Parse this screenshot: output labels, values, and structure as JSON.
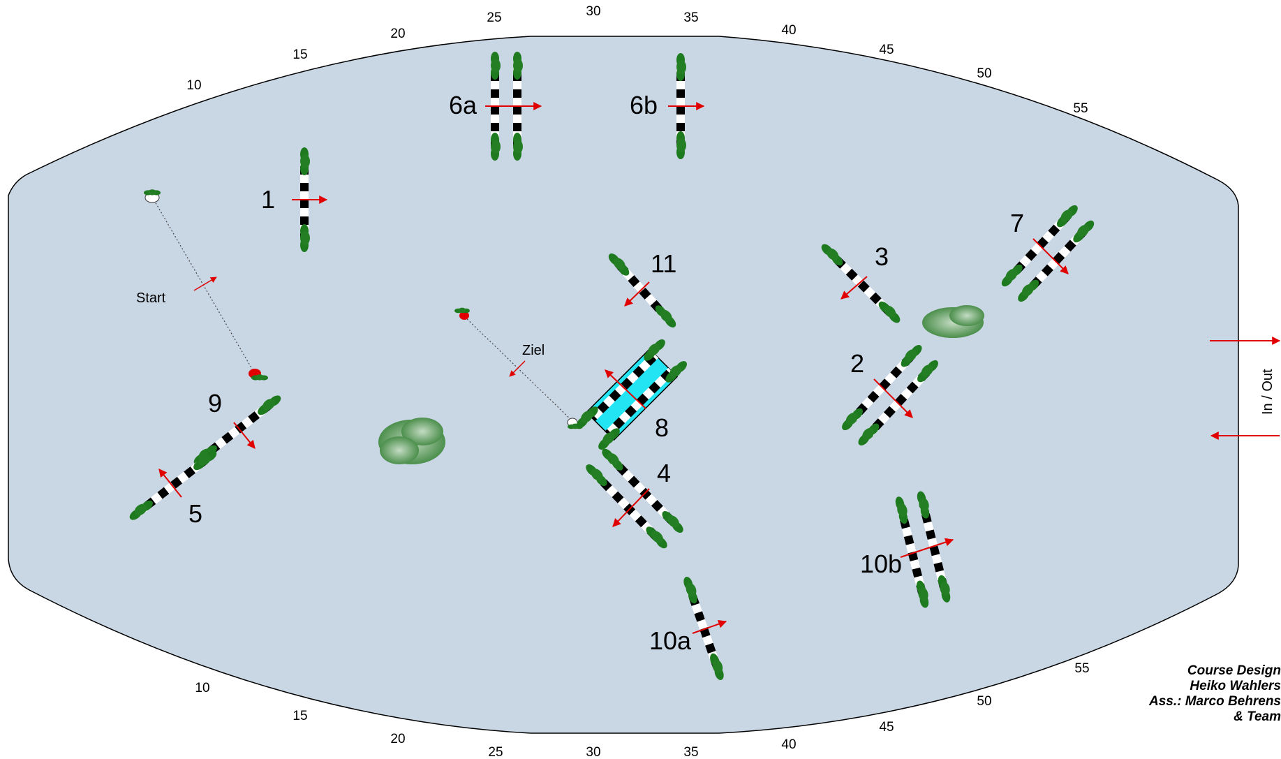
{
  "arena": {
    "fill": "#c9d6e4",
    "top_ticks": [
      "10",
      "15",
      "20",
      "25",
      "30",
      "35",
      "40",
      "45",
      "50",
      "55"
    ],
    "bottom_ticks": [
      "10",
      "15",
      "20",
      "25",
      "30",
      "35",
      "40",
      "45",
      "50",
      "55"
    ]
  },
  "labels": {
    "start": "Start",
    "finish": "Ziel",
    "in_out": "In / Out"
  },
  "fences": [
    {
      "id": "f1",
      "label": "1",
      "kind": "vertical",
      "rails": 1
    },
    {
      "id": "f2",
      "label": "2",
      "kind": "oxer",
      "rails": 2
    },
    {
      "id": "f3",
      "label": "3",
      "kind": "vertical",
      "rails": 1
    },
    {
      "id": "f4",
      "label": "4",
      "kind": "oxer",
      "rails": 2
    },
    {
      "id": "f5",
      "label": "5",
      "kind": "vertical",
      "rails": 1
    },
    {
      "id": "f6a",
      "label": "6a",
      "kind": "oxer",
      "rails": 2
    },
    {
      "id": "f6b",
      "label": "6b",
      "kind": "vertical",
      "rails": 1
    },
    {
      "id": "f7",
      "label": "7",
      "kind": "oxer",
      "rails": 2
    },
    {
      "id": "f8",
      "label": "8",
      "kind": "water-oxer",
      "rails": 2
    },
    {
      "id": "f9",
      "label": "9",
      "kind": "vertical",
      "rails": 1
    },
    {
      "id": "f10a",
      "label": "10a",
      "kind": "vertical",
      "rails": 1
    },
    {
      "id": "f10b",
      "label": "10b",
      "kind": "oxer",
      "rails": 2
    },
    {
      "id": "f11",
      "label": "11",
      "kind": "vertical",
      "rails": 1
    }
  ],
  "credits": {
    "line1": "Course Design",
    "line2": "Heiko Wahlers",
    "line3": "Ass.: Marco Behrens",
    "line4": "& Team"
  },
  "colors": {
    "arena": "#c9d6e4",
    "pole_dark": "#000000",
    "pole_light": "#ffffff",
    "wing": "#1e7a1e",
    "arrow": "#e00000",
    "water": "#22e4f2",
    "bush": "#5a9a5a"
  }
}
